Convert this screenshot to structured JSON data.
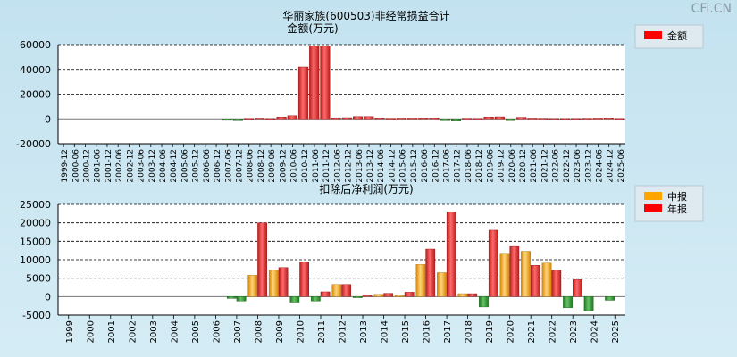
{
  "watermark": "CFi.CN",
  "chart_data": [
    {
      "type": "bar",
      "title": "华丽家族(600503)非经常损益合计",
      "subtitle": "金额(万元)",
      "legend": [
        {
          "name": "金额",
          "color": "#ff0000"
        }
      ],
      "legend_position": "top-right",
      "ylim": [
        -20000,
        60000
      ],
      "yticks": [
        -20000,
        0,
        20000,
        40000,
        60000
      ],
      "grid": true,
      "categories": [
        "1999-12",
        "2000-06",
        "2000-12",
        "2001-06",
        "2001-12",
        "2002-06",
        "2002-12",
        "2003-06",
        "2003-12",
        "2004-06",
        "2004-12",
        "2005-06",
        "2005-12",
        "2006-06",
        "2006-12",
        "2007-06",
        "2007-12",
        "2008-06",
        "2008-12",
        "2009-06",
        "2009-12",
        "2010-06",
        "2010-12",
        "2011-06",
        "2011-12",
        "2012-06",
        "2012-12",
        "2013-06",
        "2013-12",
        "2014-06",
        "2014-12",
        "2015-06",
        "2015-12",
        "2016-06",
        "2016-12",
        "2017-06",
        "2017-12",
        "2018-06",
        "2018-12",
        "2019-06",
        "2019-12",
        "2020-06",
        "2020-12",
        "2021-06",
        "2021-12",
        "2022-06",
        "2022-12",
        "2023-06",
        "2023-12",
        "2024-06",
        "2024-12",
        "2025-06"
      ],
      "series": [
        {
          "name": "金额",
          "values": [
            null,
            null,
            null,
            null,
            null,
            null,
            null,
            null,
            null,
            null,
            null,
            null,
            null,
            null,
            null,
            -1200,
            -1500,
            400,
            600,
            300,
            1500,
            2500,
            42000,
            59000,
            59000,
            800,
            900,
            1800,
            1800,
            700,
            500,
            600,
            600,
            700,
            700,
            -1500,
            -1800,
            500,
            400,
            1500,
            1600,
            -1400,
            1200,
            600,
            500,
            400,
            300,
            400,
            500,
            600,
            700,
            400
          ]
        }
      ]
    },
    {
      "type": "bar",
      "title": "扣除后净利润(万元)",
      "legend": [
        {
          "name": "中报",
          "color": "#ffa500"
        },
        {
          "name": "年报",
          "color": "#ff0000"
        }
      ],
      "legend_position": "top-right",
      "ylim": [
        -5000,
        25000
      ],
      "yticks": [
        -5000,
        0,
        5000,
        10000,
        15000,
        20000,
        25000
      ],
      "grid": true,
      "categories": [
        "1999",
        "2000",
        "2001",
        "2002",
        "2003",
        "2004",
        "2005",
        "2006",
        "2007",
        "2008",
        "2009",
        "2010",
        "2011",
        "2012",
        "2013",
        "2014",
        "2015",
        "2016",
        "2017",
        "2018",
        "2019",
        "2020",
        "2021",
        "2022",
        "2023",
        "2024",
        "2025"
      ],
      "series": [
        {
          "name": "中报",
          "values": [
            null,
            null,
            null,
            null,
            null,
            null,
            null,
            null,
            -500,
            5800,
            7200,
            -1500,
            -1200,
            3300,
            -300,
            600,
            300,
            8700,
            6500,
            800,
            -2800,
            11500,
            12300,
            9100,
            -3000,
            -3800,
            -1000
          ]
        },
        {
          "name": "年报",
          "values": [
            null,
            null,
            null,
            null,
            null,
            null,
            null,
            null,
            -1200,
            20000,
            7900,
            9400,
            1300,
            3300,
            300,
            900,
            1200,
            12900,
            23000,
            800,
            18000,
            13600,
            8500,
            7200,
            4600,
            null,
            null
          ]
        }
      ]
    }
  ]
}
